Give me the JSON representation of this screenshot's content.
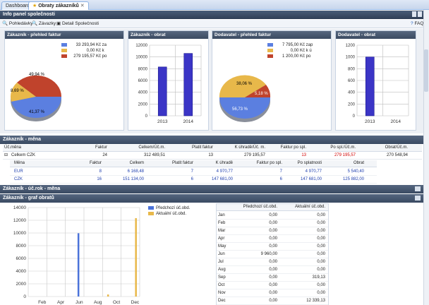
{
  "tabs": [
    {
      "label": "Dashboard"
    },
    {
      "label": "Obraty zákazníků"
    }
  ],
  "panel_title": "Info panel společnosti",
  "toolbar": {
    "pohledavky": "Pohledávky",
    "zavazky": "Závazky",
    "detail": "Detail Společnosti",
    "faq": "FAQ"
  },
  "cards": {
    "zak_prehled": {
      "title": "Zákazník - přehled faktur",
      "legend": [
        {
          "value": "33 293,94 Kč",
          "label": "za",
          "color": "#5b7fe0"
        },
        {
          "value": "0,00 Kč",
          "label": "k",
          "color": "#e8b84a"
        },
        {
          "value": "279 195,57 Kč",
          "label": "po",
          "color": "#c0432c"
        }
      ],
      "pie_labels": [
        "49,94 %",
        "8,69 %",
        "41,37 %"
      ]
    },
    "zak_obrat": {
      "title": "Zákazník - obrat",
      "ticks": [
        "12000",
        "10000",
        "8000",
        "6000",
        "4000",
        "2000",
        "0"
      ],
      "cats": [
        "2013",
        "2014"
      ]
    },
    "dod_prehled": {
      "title": "Dodavatel - přehled faktur",
      "legend": [
        {
          "value": "7 795,00 Kč",
          "label": "zap",
          "color": "#5b7fe0"
        },
        {
          "value": "0,00 Kč",
          "label": "k ú",
          "color": "#e8b84a"
        },
        {
          "value": "1 200,00 Kč",
          "label": "po",
          "color": "#c0432c"
        }
      ],
      "pie_labels": [
        "38,06 %",
        "5,18 %",
        "56,73 %"
      ]
    },
    "dod_obrat": {
      "title": "Dodavatel - obrat",
      "ticks": [
        "1200",
        "1000",
        "800",
        "600",
        "400",
        "200",
        "0"
      ],
      "cats": [
        "2013",
        "2014"
      ]
    }
  },
  "mena": {
    "title": "Zákazník - měna",
    "headers": [
      "Úč.měna",
      "Faktur",
      "Celkem/Úč.m.",
      "Platit faktur",
      "K úhradě/Úč. m.",
      "Faktur po spl.",
      "Po spl./Úč.m.",
      "Obrat/Úč.m."
    ],
    "total": [
      "Celkem CZK",
      "24",
      "312 489,51",
      "13",
      "279 195,57",
      "13",
      "279 195,57",
      "270 548,94"
    ],
    "sub_headers": [
      "Měna",
      "Faktur",
      "Celkem",
      "Platit faktur",
      "K úhradě",
      "Faktur po spl.",
      "Po splatnosti",
      "Obrat"
    ],
    "rows": [
      [
        "EUR",
        "8",
        "6 168,48",
        "7",
        "4 970,77",
        "7",
        "4 970,77",
        "5 540,40"
      ],
      [
        "CZK",
        "16",
        "151 134,00",
        "6",
        "147 681,00",
        "6",
        "147 681,00",
        "125 882,00"
      ]
    ]
  },
  "ucrok_title": "Zákazník - úč.rok - měna",
  "graf_title": "Zákazník - graf obratů",
  "graf": {
    "legend": [
      "Předchozí úč.obd.",
      "Aktuální úč.obd."
    ],
    "ticks": [
      "14000",
      "12000",
      "10000",
      "8000",
      "6000",
      "4000",
      "2000",
      "0"
    ],
    "month_labels": [
      "Feb",
      "Apr",
      "Jun",
      "Aug",
      "Oct",
      "Dec"
    ],
    "table_headers": [
      "Předchozí úč.obd.",
      "Aktuální úč.obd."
    ],
    "rows": [
      [
        "Jan",
        "0,00",
        "0,00"
      ],
      [
        "Feb",
        "0,00",
        "0,00"
      ],
      [
        "Mar",
        "0,00",
        "0,00"
      ],
      [
        "Apr",
        "0,00",
        "0,00"
      ],
      [
        "May",
        "0,00",
        "0,00"
      ],
      [
        "Jun",
        "9 960,00",
        "0,00"
      ],
      [
        "Jul",
        "0,00",
        "0,00"
      ],
      [
        "Aug",
        "0,00",
        "0,00"
      ],
      [
        "Sep",
        "0,00",
        "319,13"
      ],
      [
        "Oct",
        "0,00",
        "0,00"
      ],
      [
        "Nov",
        "0,00",
        "0,00"
      ],
      [
        "Dec",
        "0,00",
        "12 339,13"
      ]
    ]
  },
  "chart_data": [
    {
      "type": "pie",
      "title": "Zákazník - přehled faktur",
      "slices": [
        {
          "label": "po",
          "value": 49.94
        },
        {
          "label": "k",
          "value": 8.69
        },
        {
          "label": "za",
          "value": 41.37
        }
      ]
    },
    {
      "type": "bar",
      "title": "Zákazník - obrat",
      "categories": [
        "2013",
        "2014"
      ],
      "values": [
        8300,
        10600
      ],
      "ylim": [
        0,
        12000
      ]
    },
    {
      "type": "pie",
      "title": "Dodavatel - přehled faktur",
      "slices": [
        {
          "label": "zap",
          "value": 38.06
        },
        {
          "label": "k ú",
          "value": 5.18
        },
        {
          "label": "po",
          "value": 56.73
        }
      ]
    },
    {
      "type": "bar",
      "title": "Dodavatel - obrat",
      "categories": [
        "2013",
        "2014"
      ],
      "values": [
        1000,
        0
      ],
      "ylim": [
        0,
        1200
      ]
    },
    {
      "type": "bar",
      "title": "Zákazník - graf obratů",
      "categories": [
        "Jan",
        "Feb",
        "Mar",
        "Apr",
        "May",
        "Jun",
        "Jul",
        "Aug",
        "Sep",
        "Oct",
        "Nov",
        "Dec"
      ],
      "series": [
        {
          "name": "Předchozí úč.obd.",
          "values": [
            0,
            0,
            0,
            0,
            0,
            9960,
            0,
            0,
            0,
            0,
            0,
            0
          ]
        },
        {
          "name": "Aktuální úč.obd.",
          "values": [
            0,
            0,
            0,
            0,
            0,
            0,
            0,
            0,
            319.13,
            0,
            0,
            12339.13
          ]
        }
      ],
      "ylim": [
        0,
        14000
      ]
    }
  ]
}
